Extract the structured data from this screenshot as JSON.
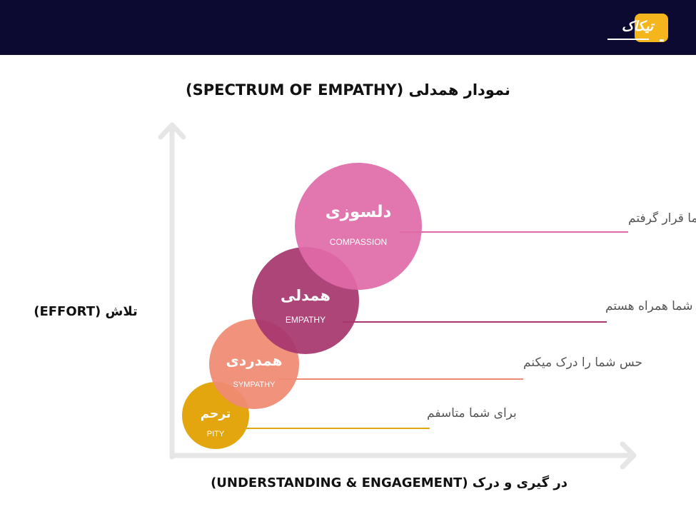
{
  "header": {
    "logo_text": "تیکاک",
    "colors": {
      "bar": "#0c0a30",
      "logo_badge": "#f4b61c"
    }
  },
  "title": "نمودار همدلی (SPECTRUM OF EMPATHY)",
  "axes": {
    "y_label": "تلاش (EFFORT)",
    "x_label": "در گیری و درک (UNDERSTANDING & ENGAGEMENT)",
    "color": "#e6e6e6"
  },
  "levels": [
    {
      "id": "pity",
      "name_fa": "ترحم",
      "name_en": "PITY",
      "phrase": "برای شما متاسفم",
      "color": "#e4a60f",
      "level": 1
    },
    {
      "id": "sympathy",
      "name_fa": "همدردی",
      "name_en": "SYMPATHY",
      "phrase": "حس شما را درک میکنم",
      "color": "#f08a72",
      "level": 2
    },
    {
      "id": "empathy",
      "name_fa": "همدلی",
      "name_en": "EMPATHY",
      "phrase": "با احساس شما همراه هستم",
      "color": "#a8376f",
      "level": 3
    },
    {
      "id": "compassion",
      "name_fa": "دلسوزی",
      "name_en": "COMPASSION",
      "phrase": "تحت تاثیر شما قرار گرفتم",
      "color": "#e06aa8",
      "level": 4
    }
  ]
}
